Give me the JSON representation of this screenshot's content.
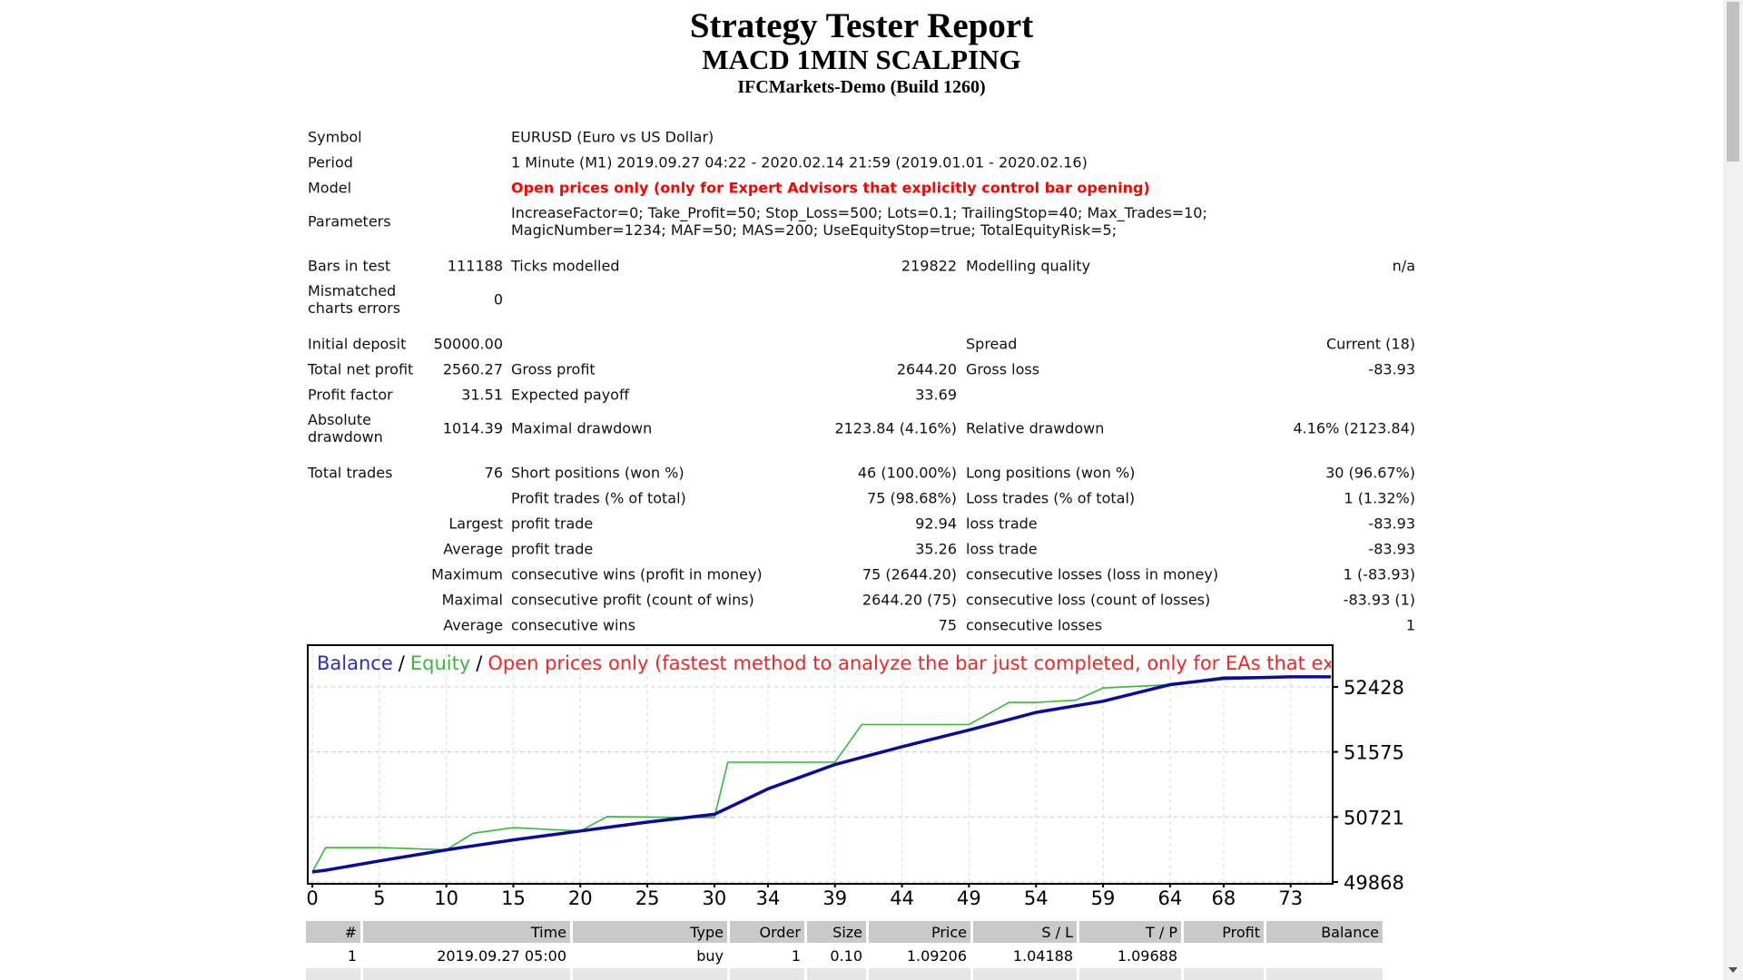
{
  "header": {
    "title": "Strategy Tester Report",
    "subtitle": "MACD 1MIN SCALPING",
    "server": "IFCMarkets-Demo (Build 1260)"
  },
  "settings": [
    {
      "label": "Symbol",
      "value": "EURUSD (Euro vs US Dollar)"
    },
    {
      "label": "Period",
      "value": "1 Minute (M1) 2019.09.27 04:22 - 2020.02.14 21:59 (2019.01.01 - 2020.02.16)"
    },
    {
      "label": "Model",
      "value": "Open prices only (only for Expert Advisors that explicitly control bar opening)"
    },
    {
      "label": "Parameters",
      "value": "IncreaseFactor=0; Take_Profit=50; Stop_Loss=500; Lots=0.1; TrailingStop=40; Max_Trades=10; MagicNumber=1234; MAF=50; MAS=200; UseEquityStop=true; TotalEquityRisk=5;"
    }
  ],
  "stats": [
    [
      [
        "Bars in test",
        "111188",
        "Ticks modelled",
        "219822",
        "Modelling quality",
        "n/a"
      ],
      [
        "Mismatched charts errors",
        "0",
        null,
        null,
        null,
        null
      ]
    ],
    [
      [
        "Initial deposit",
        "50000.00",
        null,
        null,
        "Spread",
        "Current (18)"
      ],
      [
        "Total net profit",
        "2560.27",
        "Gross profit",
        "2644.20",
        "Gross loss",
        "-83.93"
      ],
      [
        "Profit factor",
        "31.51",
        "Expected payoff",
        "33.69",
        null,
        null
      ],
      [
        "Absolute drawdown",
        "1014.39",
        "Maximal drawdown",
        "2123.84 (4.16%)",
        "Relative drawdown",
        "4.16% (2123.84)"
      ]
    ],
    [
      [
        "Total trades",
        "76",
        "Short positions (won %)",
        "46 (100.00%)",
        "Long positions (won %)",
        "30 (96.67%)"
      ],
      [
        null,
        null,
        "Profit trades (% of total)",
        "75 (98.68%)",
        "Loss trades (% of total)",
        "1 (1.32%)"
      ],
      [
        null,
        "Largest",
        "profit trade",
        "92.94",
        "loss trade",
        "-83.93"
      ],
      [
        null,
        "Average",
        "profit trade",
        "35.26",
        "loss trade",
        "-83.93"
      ],
      [
        null,
        "Maximum",
        "consecutive wins (profit in money)",
        "75 (2644.20)",
        "consecutive losses (loss in money)",
        "1 (-83.93)"
      ],
      [
        null,
        "Maximal",
        "consecutive profit (count of wins)",
        "2644.20 (75)",
        "consecutive loss (count of losses)",
        "-83.93 (1)"
      ],
      [
        null,
        "Average",
        "consecutive wins",
        "75",
        "consecutive losses",
        "1"
      ]
    ]
  ],
  "balance_chart": {
    "type": "line",
    "legend_separator": "/",
    "legend_text": "Open prices only (fastest method to analyze the bar just completed, only for EAs that explicitly control b",
    "legend_text_color": "#ff2020",
    "x": [
      0,
      1,
      5,
      10,
      12,
      15,
      20,
      22,
      25,
      30,
      31,
      34,
      39,
      41,
      44,
      49,
      52,
      54,
      57,
      59,
      64,
      68,
      73,
      76
    ],
    "series": [
      {
        "name": "Equity",
        "color": "#33bb33",
        "values": [
          50000,
          50319,
          50319,
          50290,
          50508,
          50581,
          50537,
          50726,
          50720,
          50712,
          51440,
          51440,
          51440,
          51934,
          51934,
          51934,
          52225,
          52225,
          52254,
          52414,
          52458,
          52560,
          52560,
          52560
        ]
      },
      {
        "name": "Balance",
        "color": "#0a0aa0",
        "values": [
          50000,
          50023,
          50144,
          50290,
          50342,
          50421,
          50537,
          50584,
          50654,
          50756,
          50840,
          51090,
          51410,
          51503,
          51643,
          51861,
          52001,
          52094,
          52182,
          52240,
          52458,
          52540,
          52560,
          52560
        ]
      }
    ],
    "xlim": [
      0,
      76
    ],
    "ylim": [
      49868,
      52952
    ],
    "xticks": [
      0,
      5,
      10,
      15,
      20,
      25,
      30,
      34,
      39,
      44,
      49,
      54,
      59,
      64,
      68,
      73
    ],
    "yticks": [
      49868,
      50721,
      51575,
      52428
    ],
    "grid": true
  },
  "trades": {
    "columns": [
      "#",
      "Time",
      "Type",
      "Order",
      "Size",
      "Price",
      "S / L",
      "T / P",
      "Profit",
      "Balance"
    ],
    "rows": [
      [
        "1",
        "2019.09.27 05:00",
        "buy",
        "1",
        "0.10",
        "1.09206",
        "1.04188",
        "1.09688"
      ]
    ]
  }
}
